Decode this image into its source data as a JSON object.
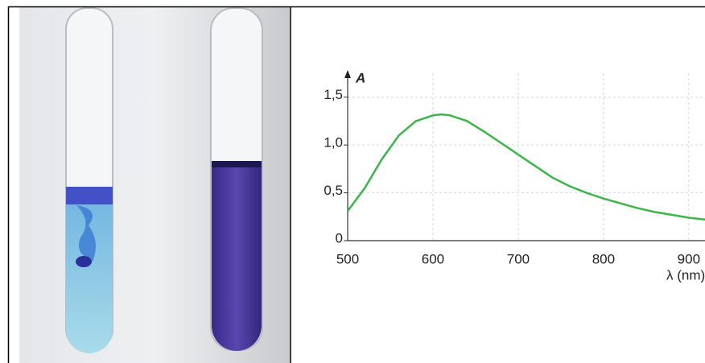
{
  "chart_data": {
    "type": "line",
    "y_label": "A",
    "x_label": "λ (nm)",
    "x": [
      500,
      520,
      540,
      560,
      580,
      600,
      610,
      620,
      640,
      660,
      680,
      700,
      720,
      740,
      760,
      780,
      800,
      820,
      840,
      860,
      880,
      900,
      920
    ],
    "values": [
      0.31,
      0.55,
      0.85,
      1.1,
      1.25,
      1.31,
      1.32,
      1.31,
      1.25,
      1.14,
      1.02,
      0.9,
      0.78,
      0.66,
      0.57,
      0.5,
      0.44,
      0.39,
      0.34,
      0.3,
      0.27,
      0.24,
      0.22
    ],
    "color": "#3cb54a",
    "xlim": [
      500,
      919
    ],
    "ylim": [
      0,
      1.75
    ],
    "xticks": [
      500,
      600,
      700,
      800,
      900
    ],
    "yticks": [
      0,
      {
        "value": 0.5,
        "label": "0,5"
      },
      {
        "value": 1,
        "label": "1,0"
      },
      {
        "value": 1.5,
        "label": "1,5"
      }
    ],
    "grid": true
  }
}
